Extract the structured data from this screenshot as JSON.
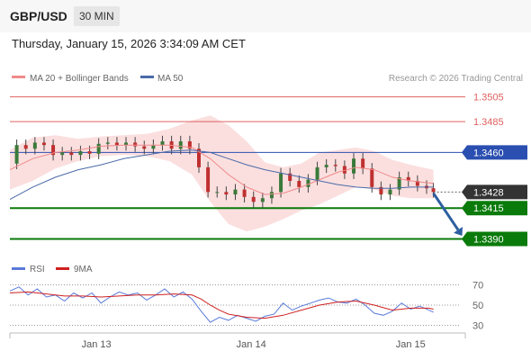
{
  "header": {
    "symbol": "GBP/USD",
    "timeframe": "30 MIN"
  },
  "timestamp": "Thursday, January 15, 2026 3:34:09 AM CET",
  "legend": {
    "ma20_label": "MA 20 + Bollinger Bands",
    "ma50_label": "MA 50",
    "credit": "Research © 2026 Trading Central"
  },
  "rsi_legend": {
    "rsi_label": "RSI",
    "ma_label": "9MA"
  },
  "colors": {
    "ma20": "#f08a8a",
    "ma50": "#4a6aa8",
    "band": "#fad4d4",
    "resistance": "#e06060",
    "pivot": "#2a4fb0",
    "support": "#0a7a0a",
    "current": "#333333",
    "arrow": "#2c5fa0",
    "candle_up": "#3a7a3a",
    "candle_down": "#c03030",
    "rsi": "#5a7ad8",
    "rsi_ma": "#d02020"
  },
  "chart_data": [
    {
      "type": "candlestick",
      "title": "GBP/USD",
      "ylim": [
        1.3378,
        1.3512
      ],
      "xlim": [
        0,
        100
      ],
      "x_ticks": [
        {
          "x": 19,
          "label": "Jan 13"
        },
        {
          "x": 53,
          "label": "Jan 14"
        },
        {
          "x": 88,
          "label": "Jan 15"
        }
      ],
      "levels": [
        {
          "value": 1.3505,
          "label": "1.3505",
          "kind": "resistance"
        },
        {
          "value": 1.3485,
          "label": "1.3485",
          "kind": "resistance"
        },
        {
          "value": 1.346,
          "label": "1.3460",
          "kind": "pivot"
        },
        {
          "value": 1.3428,
          "label": "1.3428",
          "kind": "current"
        },
        {
          "value": 1.3415,
          "label": "1.3415",
          "kind": "support"
        },
        {
          "value": 1.339,
          "label": "1.3390",
          "kind": "support"
        }
      ],
      "forecast_arrow": {
        "from": [
          93,
          1.3427
        ],
        "to": [
          100,
          1.3393
        ]
      },
      "close_series": [
        [
          0,
          1.3451
        ],
        [
          2,
          1.3466
        ],
        [
          4,
          1.3463
        ],
        [
          6,
          1.3468
        ],
        [
          8,
          1.3466
        ],
        [
          10,
          1.3458
        ],
        [
          12,
          1.346
        ],
        [
          14,
          1.3458
        ],
        [
          16,
          1.3461
        ],
        [
          18,
          1.3459
        ],
        [
          20,
          1.3467
        ],
        [
          22,
          1.3468
        ],
        [
          24,
          1.3466
        ],
        [
          26,
          1.3468
        ],
        [
          28,
          1.3465
        ],
        [
          30,
          1.3463
        ],
        [
          32,
          1.3466
        ],
        [
          34,
          1.3469
        ],
        [
          36,
          1.3463
        ],
        [
          38,
          1.3469
        ],
        [
          40,
          1.3463
        ],
        [
          42,
          1.3448
        ],
        [
          44,
          1.3428
        ],
        [
          46,
          1.3428
        ],
        [
          48,
          1.3426
        ],
        [
          50,
          1.343
        ],
        [
          52,
          1.3424
        ],
        [
          54,
          1.342
        ],
        [
          56,
          1.3423
        ],
        [
          58,
          1.3428
        ],
        [
          60,
          1.3443
        ],
        [
          62,
          1.3437
        ],
        [
          64,
          1.3432
        ],
        [
          66,
          1.3438
        ],
        [
          68,
          1.3448
        ],
        [
          70,
          1.345
        ],
        [
          72,
          1.3449
        ],
        [
          74,
          1.3443
        ],
        [
          76,
          1.3455
        ],
        [
          78,
          1.3447
        ],
        [
          80,
          1.3432
        ],
        [
          82,
          1.3426
        ],
        [
          84,
          1.343
        ],
        [
          86,
          1.344
        ],
        [
          88,
          1.3437
        ],
        [
          90,
          1.3433
        ],
        [
          92,
          1.3431
        ],
        [
          93,
          1.3428
        ]
      ],
      "ma20": [
        [
          0,
          1.3446
        ],
        [
          5,
          1.3455
        ],
        [
          10,
          1.346
        ],
        [
          15,
          1.3462
        ],
        [
          20,
          1.3465
        ],
        [
          25,
          1.3466
        ],
        [
          30,
          1.3466
        ],
        [
          35,
          1.3466
        ],
        [
          40,
          1.3464
        ],
        [
          44,
          1.3455
        ],
        [
          48,
          1.3442
        ],
        [
          52,
          1.3432
        ],
        [
          56,
          1.3426
        ],
        [
          60,
          1.3427
        ],
        [
          64,
          1.3432
        ],
        [
          68,
          1.3438
        ],
        [
          72,
          1.3444
        ],
        [
          76,
          1.3448
        ],
        [
          80,
          1.3446
        ],
        [
          84,
          1.344
        ],
        [
          88,
          1.3437
        ],
        [
          93,
          1.3435
        ]
      ],
      "bollinger_upper": [
        [
          0,
          1.3462
        ],
        [
          5,
          1.3472
        ],
        [
          10,
          1.3474
        ],
        [
          15,
          1.3471
        ],
        [
          20,
          1.3473
        ],
        [
          25,
          1.3474
        ],
        [
          30,
          1.3475
        ],
        [
          35,
          1.3479
        ],
        [
          40,
          1.3486
        ],
        [
          44,
          1.349
        ],
        [
          48,
          1.3482
        ],
        [
          52,
          1.3469
        ],
        [
          56,
          1.3452
        ],
        [
          60,
          1.3448
        ],
        [
          64,
          1.3451
        ],
        [
          68,
          1.346
        ],
        [
          72,
          1.3462
        ],
        [
          76,
          1.3464
        ],
        [
          80,
          1.3461
        ],
        [
          84,
          1.3454
        ],
        [
          88,
          1.345
        ],
        [
          93,
          1.3446
        ]
      ],
      "bollinger_lower": [
        [
          0,
          1.343
        ],
        [
          5,
          1.3437
        ],
        [
          10,
          1.3447
        ],
        [
          15,
          1.3453
        ],
        [
          20,
          1.3457
        ],
        [
          25,
          1.3458
        ],
        [
          30,
          1.3457
        ],
        [
          35,
          1.3453
        ],
        [
          40,
          1.3442
        ],
        [
          44,
          1.342
        ],
        [
          48,
          1.3402
        ],
        [
          52,
          1.3396
        ],
        [
          56,
          1.34
        ],
        [
          60,
          1.3406
        ],
        [
          64,
          1.3413
        ],
        [
          68,
          1.3418
        ],
        [
          72,
          1.3425
        ],
        [
          76,
          1.3432
        ],
        [
          80,
          1.343
        ],
        [
          84,
          1.3425
        ],
        [
          88,
          1.3423
        ],
        [
          93,
          1.3423
        ]
      ],
      "ma50": [
        [
          0,
          1.3422
        ],
        [
          5,
          1.3432
        ],
        [
          10,
          1.344
        ],
        [
          15,
          1.3446
        ],
        [
          20,
          1.345
        ],
        [
          25,
          1.3455
        ],
        [
          30,
          1.3458
        ],
        [
          35,
          1.3461
        ],
        [
          40,
          1.3462
        ],
        [
          44,
          1.346
        ],
        [
          48,
          1.3455
        ],
        [
          52,
          1.345
        ],
        [
          56,
          1.3446
        ],
        [
          60,
          1.3443
        ],
        [
          64,
          1.344
        ],
        [
          68,
          1.3437
        ],
        [
          72,
          1.3434
        ],
        [
          76,
          1.3432
        ],
        [
          80,
          1.3431
        ],
        [
          84,
          1.3431
        ],
        [
          88,
          1.3432
        ],
        [
          93,
          1.3432
        ]
      ]
    },
    {
      "type": "line",
      "title": "RSI",
      "ylim": [
        26,
        74
      ],
      "xlim": [
        0,
        100
      ],
      "y_ticks": [
        70,
        50,
        30
      ],
      "series": [
        {
          "name": "RSI",
          "values": [
            [
              0,
              64
            ],
            [
              2,
              68
            ],
            [
              4,
              60
            ],
            [
              6,
              66
            ],
            [
              8,
              58
            ],
            [
              10,
              60
            ],
            [
              12,
              54
            ],
            [
              14,
              62
            ],
            [
              16,
              57
            ],
            [
              18,
              62
            ],
            [
              20,
              52
            ],
            [
              22,
              58
            ],
            [
              24,
              63
            ],
            [
              26,
              60
            ],
            [
              28,
              62
            ],
            [
              30,
              55
            ],
            [
              32,
              60
            ],
            [
              34,
              66
            ],
            [
              36,
              58
            ],
            [
              38,
              63
            ],
            [
              40,
              56
            ],
            [
              42,
              44
            ],
            [
              44,
              33
            ],
            [
              46,
              38
            ],
            [
              48,
              35
            ],
            [
              50,
              40
            ],
            [
              52,
              37
            ],
            [
              54,
              34
            ],
            [
              56,
              39
            ],
            [
              58,
              41
            ],
            [
              60,
              52
            ],
            [
              62,
              45
            ],
            [
              64,
              49
            ],
            [
              66,
              52
            ],
            [
              68,
              55
            ],
            [
              70,
              57
            ],
            [
              72,
              53
            ],
            [
              74,
              52
            ],
            [
              76,
              56
            ],
            [
              78,
              50
            ],
            [
              80,
              42
            ],
            [
              82,
              40
            ],
            [
              84,
              44
            ],
            [
              86,
              52
            ],
            [
              88,
              46
            ],
            [
              90,
              49
            ],
            [
              92,
              45
            ],
            [
              93,
              43
            ]
          ]
        },
        {
          "name": "9MA",
          "values": [
            [
              0,
              62
            ],
            [
              4,
              63
            ],
            [
              8,
              61
            ],
            [
              12,
              59
            ],
            [
              16,
              59
            ],
            [
              20,
              58
            ],
            [
              24,
              59
            ],
            [
              28,
              60
            ],
            [
              32,
              60
            ],
            [
              36,
              61
            ],
            [
              40,
              60
            ],
            [
              42,
              56
            ],
            [
              44,
              50
            ],
            [
              46,
              45
            ],
            [
              48,
              41
            ],
            [
              52,
              38
            ],
            [
              56,
              37
            ],
            [
              60,
              40
            ],
            [
              64,
              45
            ],
            [
              68,
              50
            ],
            [
              72,
              53
            ],
            [
              76,
              54
            ],
            [
              80,
              50
            ],
            [
              84,
              45
            ],
            [
              88,
              47
            ],
            [
              92,
              47
            ],
            [
              93,
              46
            ]
          ]
        }
      ]
    }
  ]
}
